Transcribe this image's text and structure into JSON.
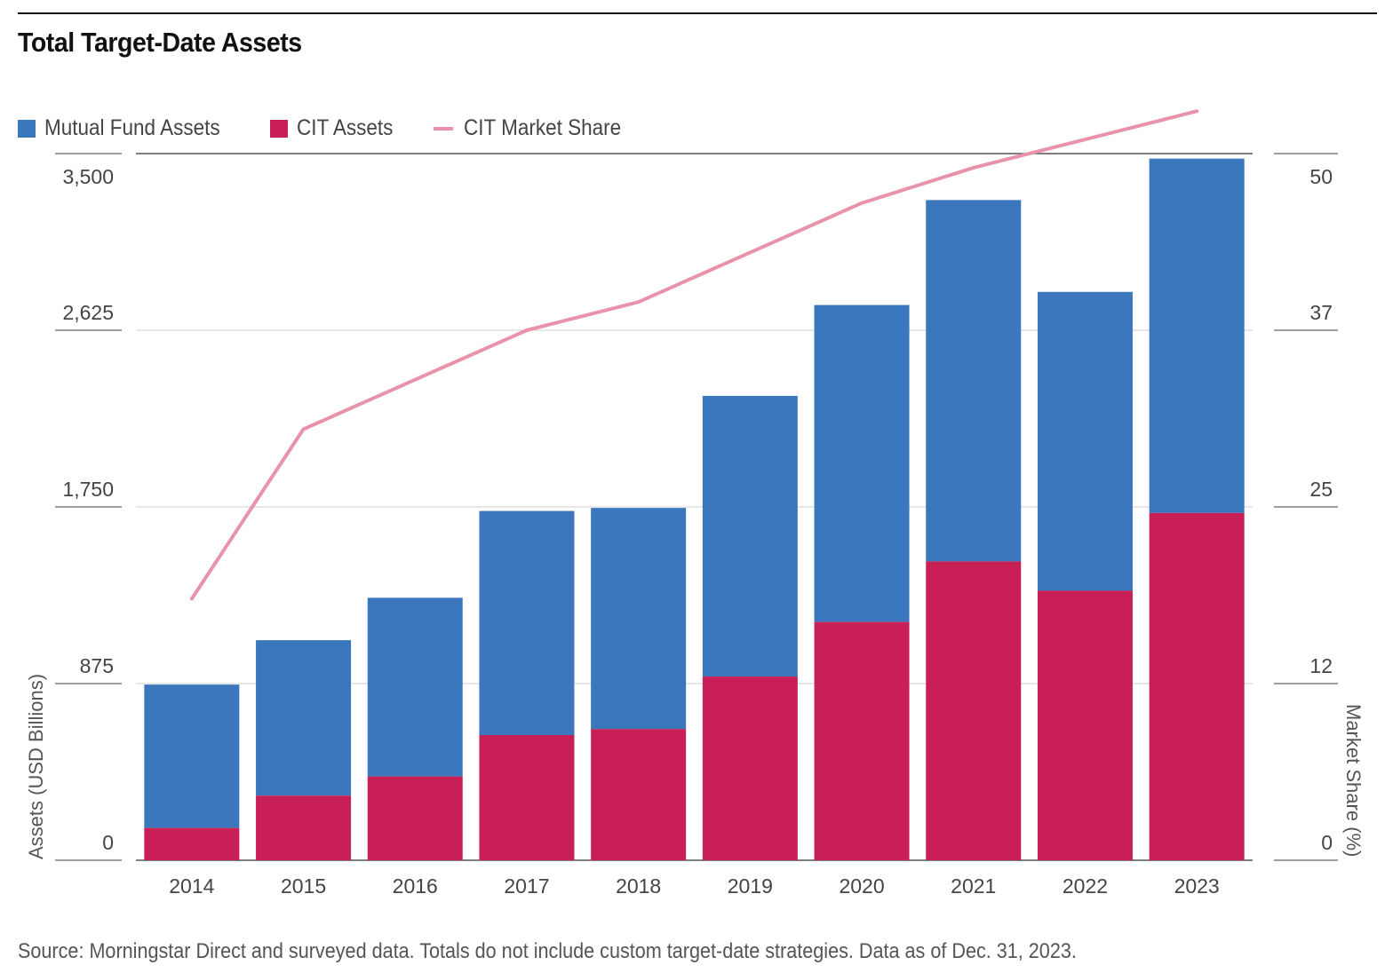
{
  "chart_data": {
    "type": "bar",
    "stacked": true,
    "title": "Total Target-Date Assets",
    "categories": [
      "2014",
      "2015",
      "2016",
      "2017",
      "2018",
      "2019",
      "2020",
      "2021",
      "2022",
      "2023"
    ],
    "series": [
      {
        "name": "CIT Assets",
        "type": "bar",
        "axis": "left",
        "color": "#c81f56",
        "values": [
          160,
          320,
          415,
          620,
          650,
          910,
          1180,
          1480,
          1335,
          1720
        ]
      },
      {
        "name": "Mutual Fund Assets",
        "type": "bar",
        "axis": "left",
        "color": "#3a77bd",
        "values": [
          710,
          770,
          885,
          1110,
          1095,
          1390,
          1570,
          1790,
          1480,
          1755
        ]
      },
      {
        "name": "CIT Market Share",
        "type": "line",
        "axis": "right",
        "color": "#e993ab",
        "values": [
          18.5,
          30.5,
          34,
          37.5,
          39.5,
          43,
          46.5,
          49,
          51,
          53
        ]
      }
    ],
    "legend_order": [
      "Mutual Fund Assets",
      "CIT Assets",
      "CIT Market Share"
    ],
    "ylabel": "Assets (USD Billions)",
    "ylim": [
      0,
      3500
    ],
    "yticks": [
      "0",
      "875",
      "1,750",
      "2,625",
      "3,500"
    ],
    "ylabel_right": "Market Share (%)",
    "ylim_right": [
      0,
      50
    ],
    "yticks_right": [
      "0",
      "12",
      "25",
      "37",
      "50"
    ],
    "legend_position": "top-left",
    "grid": true
  },
  "source_note": "Source: Morningstar Direct and surveyed data. Totals do not include custom target-date strategies. Data as of Dec. 31, 2023."
}
